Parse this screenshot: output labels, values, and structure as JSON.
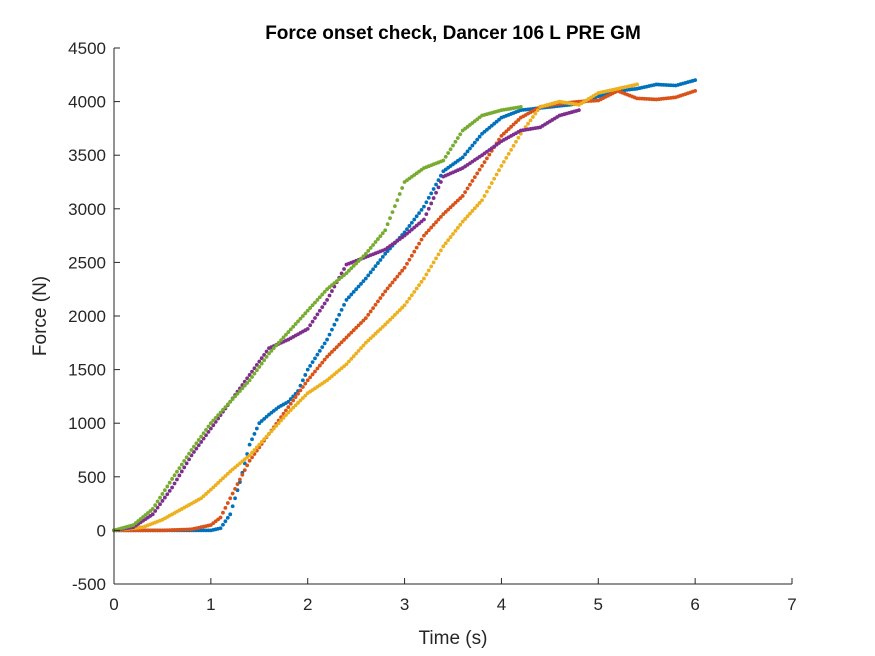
{
  "chart_data": {
    "type": "scatter",
    "title": "Force onset check, Dancer 106 L PRE GM",
    "xlabel": "Time (s)",
    "ylabel": "Force (N)",
    "xlim": [
      0,
      7
    ],
    "ylim": [
      -500,
      4500
    ],
    "xticks": [
      "0",
      "1",
      "2",
      "3",
      "4",
      "5",
      "6",
      "7"
    ],
    "yticks": [
      "-500",
      "0",
      "500",
      "1000",
      "1500",
      "2000",
      "2500",
      "3000",
      "3500",
      "4000",
      "4500"
    ],
    "grid": false,
    "colors": [
      "#0072BD",
      "#D95319",
      "#EDB120",
      "#7E2F8E",
      "#77AC30"
    ],
    "series": [
      {
        "x": [
          0,
          0.5,
          1.0,
          1.1,
          1.2,
          1.3,
          1.4,
          1.5,
          1.6,
          1.7,
          1.8,
          1.9,
          2.0,
          2.2,
          2.4,
          2.6,
          2.8,
          3.0,
          3.2,
          3.4,
          3.6,
          3.8,
          4.0,
          4.2,
          4.4,
          4.6,
          4.8,
          5.0,
          5.2,
          5.4,
          5.6,
          5.8,
          6.0
        ],
        "y": [
          0,
          0,
          0,
          20,
          150,
          450,
          800,
          1000,
          1080,
          1150,
          1200,
          1300,
          1500,
          1780,
          2150,
          2350,
          2580,
          2780,
          3020,
          3350,
          3480,
          3700,
          3850,
          3920,
          3940,
          3960,
          3980,
          4050,
          4100,
          4120,
          4160,
          4150,
          4200
        ]
      },
      {
        "x": [
          0,
          0.5,
          0.8,
          1.0,
          1.1,
          1.2,
          1.4,
          1.6,
          1.8,
          2.0,
          2.2,
          2.4,
          2.6,
          2.8,
          3.0,
          3.2,
          3.4,
          3.6,
          3.8,
          4.0,
          4.2,
          4.4,
          4.6,
          4.8,
          5.0,
          5.2,
          5.4,
          5.6,
          5.8,
          6.0
        ],
        "y": [
          0,
          0,
          10,
          50,
          120,
          300,
          650,
          900,
          1150,
          1400,
          1620,
          1800,
          1980,
          2230,
          2450,
          2750,
          2950,
          3120,
          3400,
          3680,
          3850,
          3950,
          3980,
          4000,
          4010,
          4100,
          4030,
          4020,
          4040,
          4100
        ]
      },
      {
        "x": [
          0,
          0.3,
          0.5,
          0.7,
          0.9,
          1.0,
          1.2,
          1.4,
          1.6,
          1.8,
          2.0,
          2.2,
          2.4,
          2.6,
          2.8,
          3.0,
          3.2,
          3.4,
          3.6,
          3.8,
          4.0,
          4.2,
          4.4,
          4.6,
          4.8,
          5.0,
          5.2,
          5.4
        ],
        "y": [
          0,
          30,
          100,
          200,
          300,
          380,
          550,
          700,
          900,
          1100,
          1280,
          1400,
          1550,
          1750,
          1920,
          2100,
          2350,
          2650,
          2880,
          3080,
          3400,
          3700,
          3950,
          4000,
          3970,
          4080,
          4120,
          4160
        ]
      },
      {
        "x": [
          0,
          0.2,
          0.4,
          0.6,
          0.8,
          1.0,
          1.2,
          1.4,
          1.6,
          1.8,
          2.0,
          2.2,
          2.4,
          2.6,
          2.8,
          3.0,
          3.2,
          3.4,
          3.6,
          3.8,
          4.0,
          4.2,
          4.4,
          4.6,
          4.8
        ],
        "y": [
          0,
          30,
          150,
          400,
          700,
          950,
          1200,
          1450,
          1700,
          1780,
          1880,
          2150,
          2480,
          2550,
          2620,
          2750,
          2900,
          3300,
          3380,
          3500,
          3630,
          3730,
          3760,
          3870,
          3920
        ]
      },
      {
        "x": [
          0,
          0.2,
          0.4,
          0.6,
          0.8,
          1.0,
          1.2,
          1.4,
          1.6,
          1.8,
          2.0,
          2.2,
          2.4,
          2.6,
          2.8,
          3.0,
          3.2,
          3.4,
          3.6,
          3.8,
          4.0,
          4.2
        ],
        "y": [
          0,
          50,
          200,
          480,
          750,
          1000,
          1200,
          1400,
          1650,
          1850,
          2050,
          2250,
          2400,
          2580,
          2800,
          3250,
          3380,
          3450,
          3730,
          3870,
          3920,
          3950
        ]
      }
    ]
  }
}
